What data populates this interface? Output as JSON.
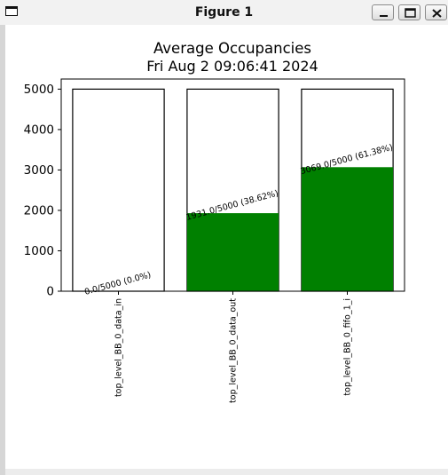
{
  "window": {
    "title": "Figure 1",
    "icons": [
      "window-icon",
      "minimize-icon",
      "maximize-icon",
      "close-icon"
    ]
  },
  "chart_data": {
    "type": "bar",
    "title": "Average Occupancies",
    "subtitle": "Fri Aug  2 09:06:41 2024",
    "xlabel": "",
    "ylabel": "",
    "categories": [
      "top_level_BB_0_data_in",
      "top_level_BB_0_data_out",
      "top_level_BB_0_fifo_1_i"
    ],
    "capacity": [
      5000,
      5000,
      5000
    ],
    "values": [
      0.0,
      1931.0,
      3069.0
    ],
    "data_labels": [
      "0.0/5000 (0.0%)",
      "1931.0/5000 (38.62%)",
      "3069.0/5000 (61.38%)"
    ],
    "ylim": [
      0,
      5250
    ],
    "yticks": [
      0,
      1000,
      2000,
      3000,
      4000,
      5000
    ],
    "ytick_labels": [
      "0",
      "1000",
      "2000",
      "3000",
      "4000",
      "5000"
    ],
    "grid": false,
    "colors": {
      "fill": "#008000",
      "capacity_edge": "#000000"
    }
  }
}
